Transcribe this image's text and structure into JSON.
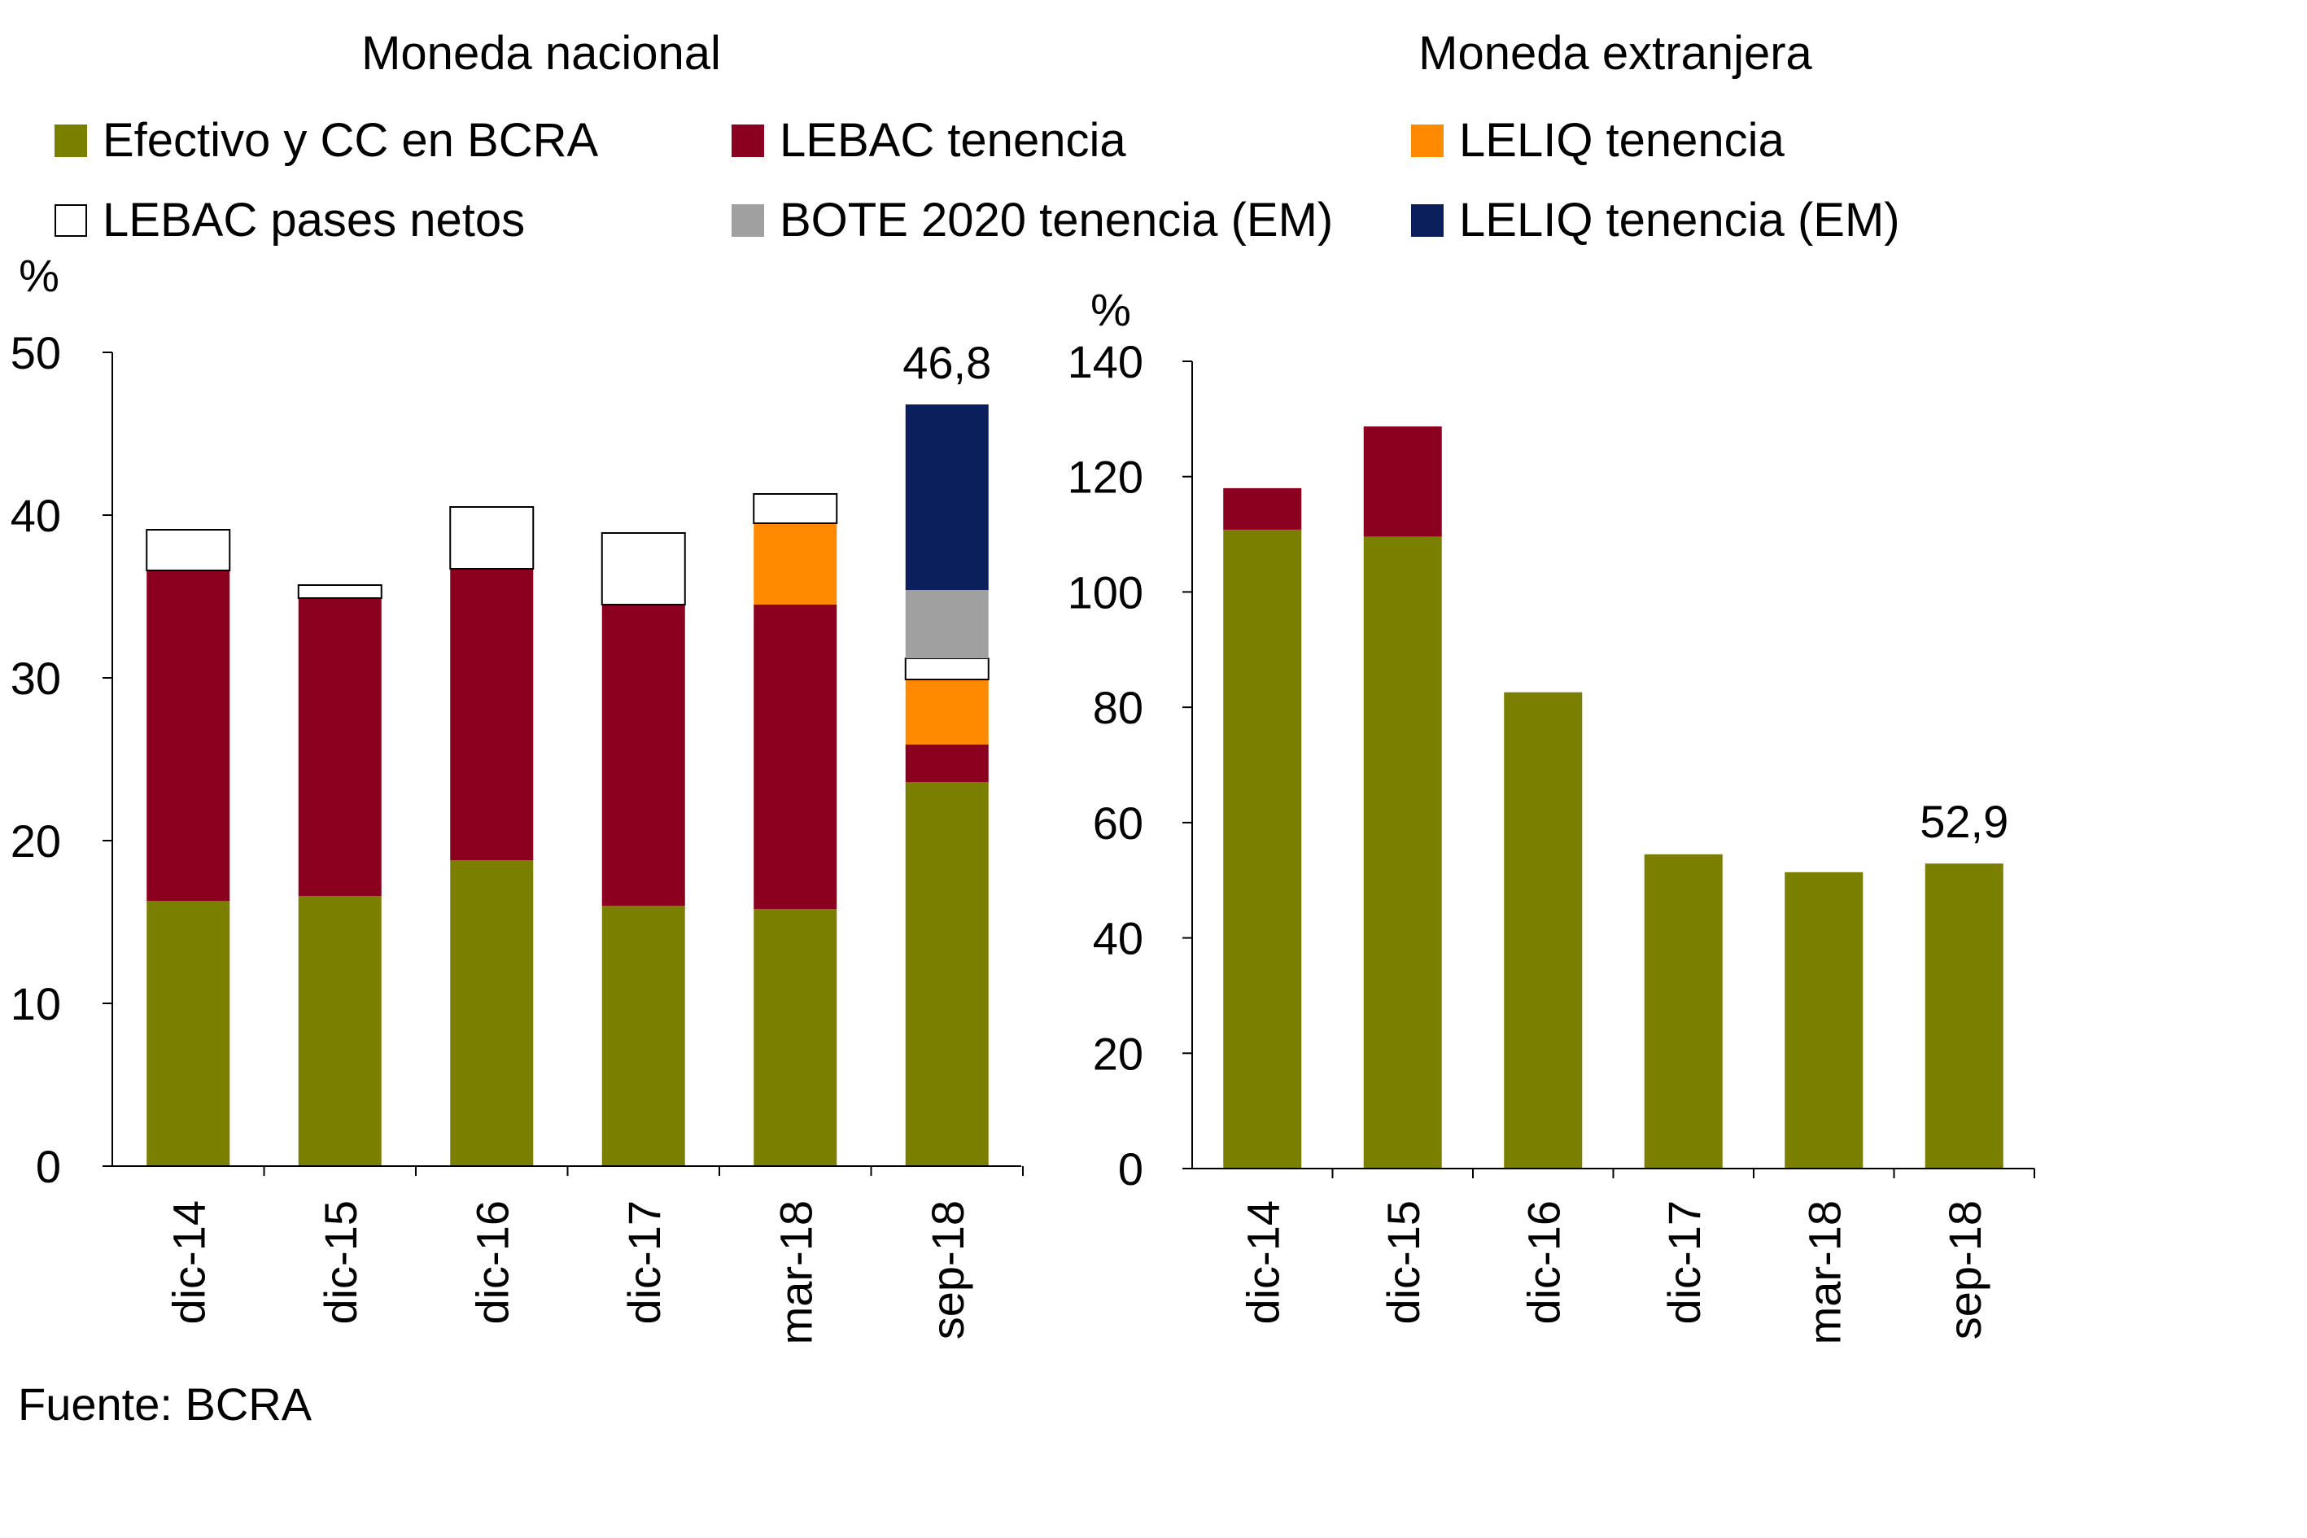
{
  "legend": [
    {
      "key": "efectivo",
      "label": "Efectivo y CC en BCRA",
      "color": "#7b7f00"
    },
    {
      "key": "lebac",
      "label": "LEBAC tenencia",
      "color": "#8a001e"
    },
    {
      "key": "leliq",
      "label": "LELIQ tenencia",
      "color": "#ff8a00"
    },
    {
      "key": "pases",
      "label": "LEBAC pases netos",
      "color": "#ffffff"
    },
    {
      "key": "bote",
      "label": "BOTE 2020 tenencia (EM)",
      "color": "#a0a0a0"
    },
    {
      "key": "leliq_em",
      "label": "LELIQ tenencia (EM)",
      "color": "#0a1f5c"
    }
  ],
  "source": "Fuente: BCRA",
  "chart_data": [
    {
      "type": "bar",
      "stacked": true,
      "title": "Moneda nacional",
      "ylabel": "%",
      "ylim": [
        0,
        50
      ],
      "yticks": [
        0,
        10,
        20,
        30,
        40,
        50
      ],
      "categories": [
        "dic-14",
        "dic-15",
        "dic-16",
        "dic-17",
        "mar-18",
        "sep-18"
      ],
      "series": [
        {
          "key": "efectivo",
          "name": "Efectivo y CC en BCRA",
          "values": [
            16.3,
            16.6,
            18.8,
            16.0,
            15.8,
            23.6
          ]
        },
        {
          "key": "lebac",
          "name": "LEBAC tenencia",
          "values": [
            20.3,
            18.3,
            17.9,
            18.5,
            18.7,
            2.3
          ]
        },
        {
          "key": "leliq",
          "name": "LELIQ tenencia",
          "values": [
            0,
            0,
            0,
            0,
            5.0,
            4.0
          ]
        },
        {
          "key": "pases",
          "name": "LEBAC pases netos",
          "values": [
            2.5,
            0.8,
            3.8,
            4.4,
            1.8,
            1.3
          ]
        },
        {
          "key": "bote",
          "name": "BOTE 2020 tenencia (EM)",
          "values": [
            0,
            0,
            0,
            0,
            0,
            4.2
          ]
        },
        {
          "key": "leliq_em",
          "name": "LELIQ tenencia (EM)",
          "values": [
            0,
            0,
            0,
            0,
            0,
            11.4
          ]
        }
      ],
      "annotations": [
        {
          "category": "sep-18",
          "text": "46,8"
        }
      ]
    },
    {
      "type": "bar",
      "stacked": true,
      "title": "Moneda extranjera",
      "ylabel": "%",
      "ylim": [
        0,
        140
      ],
      "yticks": [
        0,
        20,
        40,
        60,
        80,
        100,
        120,
        140
      ],
      "categories": [
        "dic-14",
        "dic-15",
        "dic-16",
        "dic-17",
        "mar-18",
        "sep-18"
      ],
      "series": [
        {
          "key": "efectivo",
          "name": "Efectivo y CC en BCRA",
          "values": [
            110.8,
            109.6,
            82.6,
            54.5,
            51.4,
            52.9
          ]
        },
        {
          "key": "lebac",
          "name": "LEBAC tenencia",
          "values": [
            7.2,
            19.1,
            0,
            0,
            0,
            0
          ]
        }
      ],
      "annotations": [
        {
          "category": "sep-18",
          "text": "52,9"
        }
      ]
    }
  ]
}
